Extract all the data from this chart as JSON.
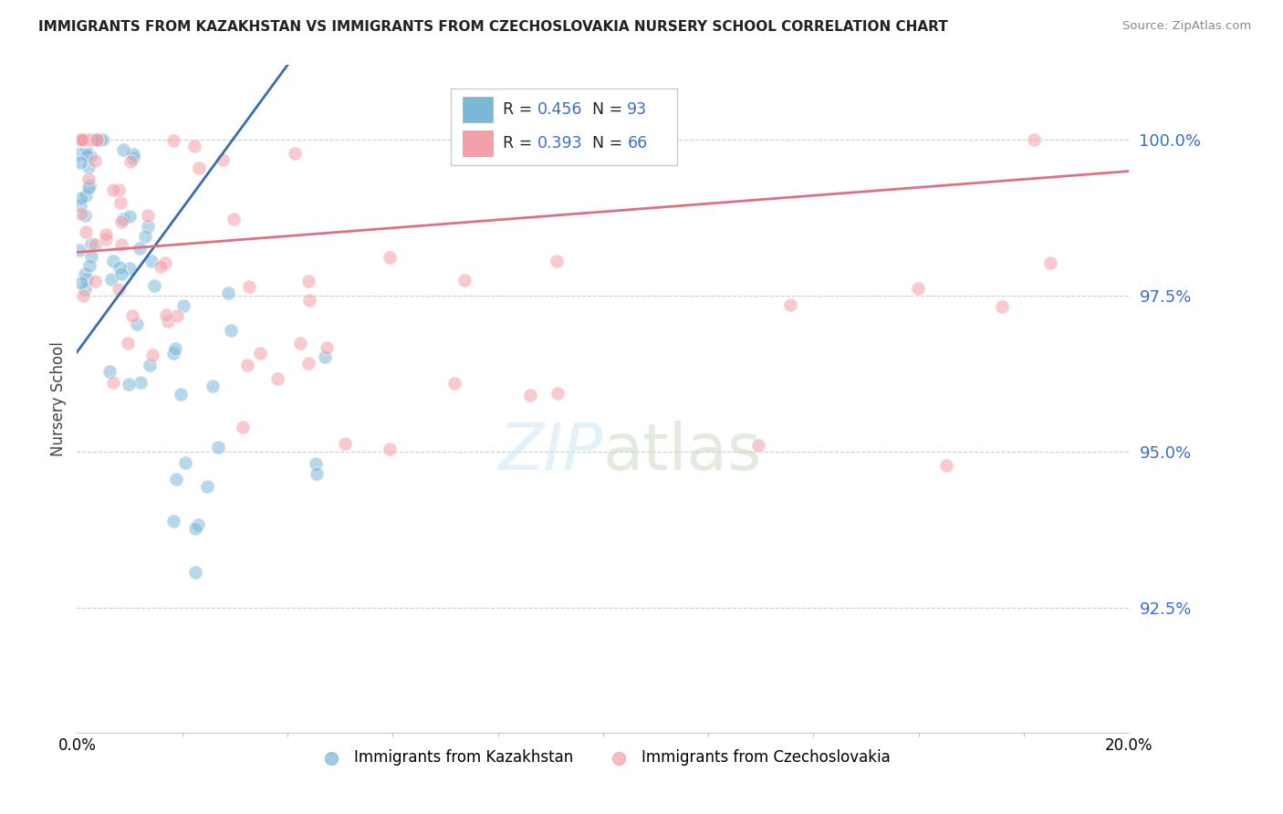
{
  "title": "IMMIGRANTS FROM KAZAKHSTAN VS IMMIGRANTS FROM CZECHOSLOVAKIA NURSERY SCHOOL CORRELATION CHART",
  "source": "Source: ZipAtlas.com",
  "ylabel": "Nursery School",
  "yticks": [
    92.5,
    95.0,
    97.5,
    100.0
  ],
  "ytick_labels": [
    "92.5%",
    "95.0%",
    "97.5%",
    "100.0%"
  ],
  "xmin": 0.0,
  "xmax": 20.0,
  "ymin": 90.5,
  "ymax": 101.2,
  "legend_r1": "0.456",
  "legend_n1": "93",
  "legend_r2": "0.393",
  "legend_n2": "66",
  "color_kazakhstan": "#7ab8d9",
  "color_czechoslovakia": "#f4a0a8",
  "color_line_kazakhstan": "#3a6eab",
  "color_line_czechoslovakia": "#e07080",
  "watermark": "ZIPatlas",
  "bottom_label_kaz": "Immigrants from Kazakhstan",
  "bottom_label_czech": "Immigrants from Czechoslovakia"
}
